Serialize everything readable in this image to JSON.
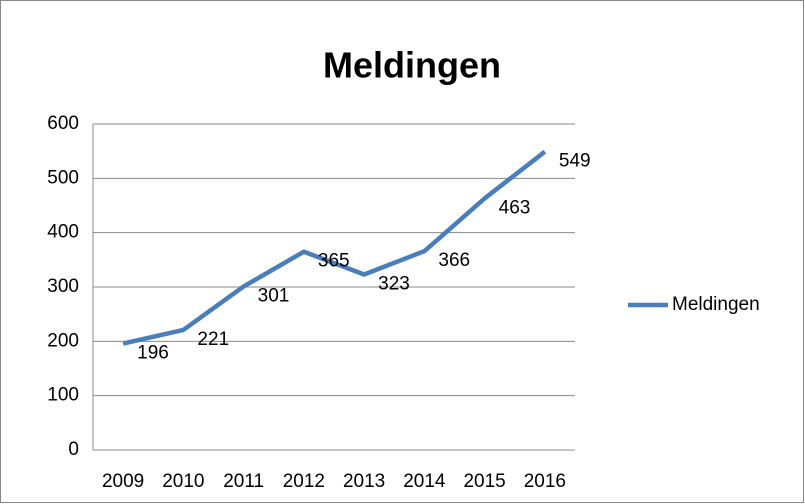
{
  "chart_data": {
    "type": "line",
    "title": "Meldingen",
    "categories": [
      "2009",
      "2010",
      "2011",
      "2012",
      "2013",
      "2014",
      "2015",
      "2016"
    ],
    "series": [
      {
        "name": "Meldingen",
        "color": "#4a7ebb",
        "values": [
          196,
          221,
          301,
          365,
          323,
          366,
          463,
          549
        ]
      }
    ],
    "ylim": [
      0,
      600
    ],
    "yticks": [
      0,
      100,
      200,
      300,
      400,
      500,
      600
    ],
    "grid": true,
    "legend": "right"
  }
}
